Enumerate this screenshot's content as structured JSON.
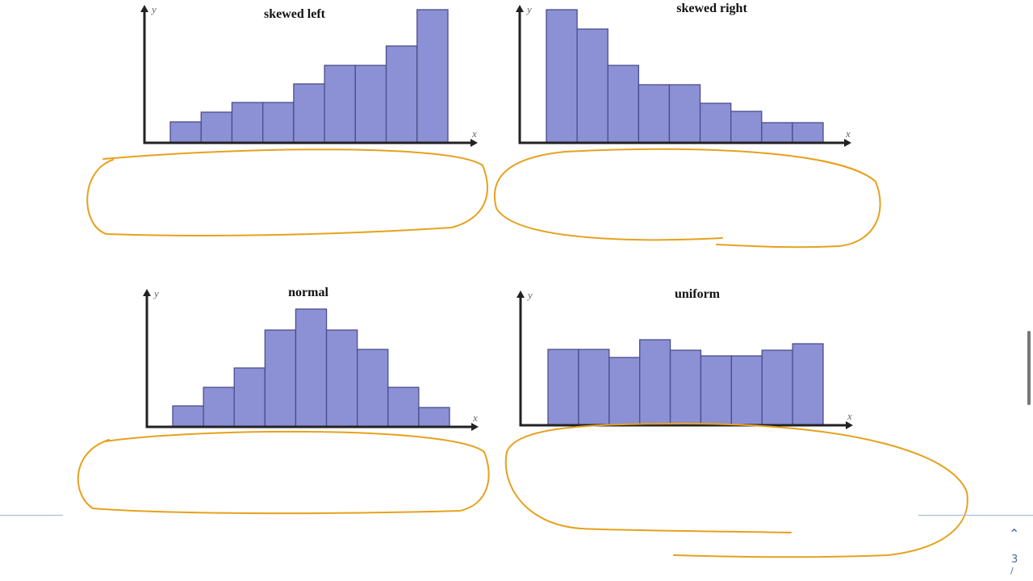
{
  "chart_data": [
    {
      "type": "bar",
      "title": "skewed left",
      "xlabel": "x",
      "ylabel": "y",
      "grid": false,
      "values": [
        26,
        38,
        50,
        50,
        73,
        96,
        96,
        120,
        165
      ]
    },
    {
      "type": "bar",
      "title": "skewed right",
      "xlabel": "x",
      "ylabel": "y",
      "grid": false,
      "values": [
        165,
        141,
        96,
        72,
        72,
        49,
        39,
        25,
        25
      ]
    },
    {
      "type": "bar",
      "title": "normal",
      "xlabel": "x",
      "ylabel": "y",
      "grid": false,
      "values": [
        26,
        49,
        73,
        120,
        146,
        120,
        96,
        49,
        24
      ]
    },
    {
      "type": "bar",
      "title": "uniform",
      "xlabel": "x",
      "ylabel": "y",
      "grid": false,
      "values": [
        94,
        94,
        84,
        106,
        93,
        86,
        86,
        93,
        101
      ]
    }
  ],
  "colors": {
    "bar": "#8c90d4",
    "ink": "#e6a11d",
    "divider": "#9fb3d6"
  },
  "viewer": {
    "up_icon": "chevron-up-icon",
    "page": "3",
    "page_suffix": "/"
  }
}
